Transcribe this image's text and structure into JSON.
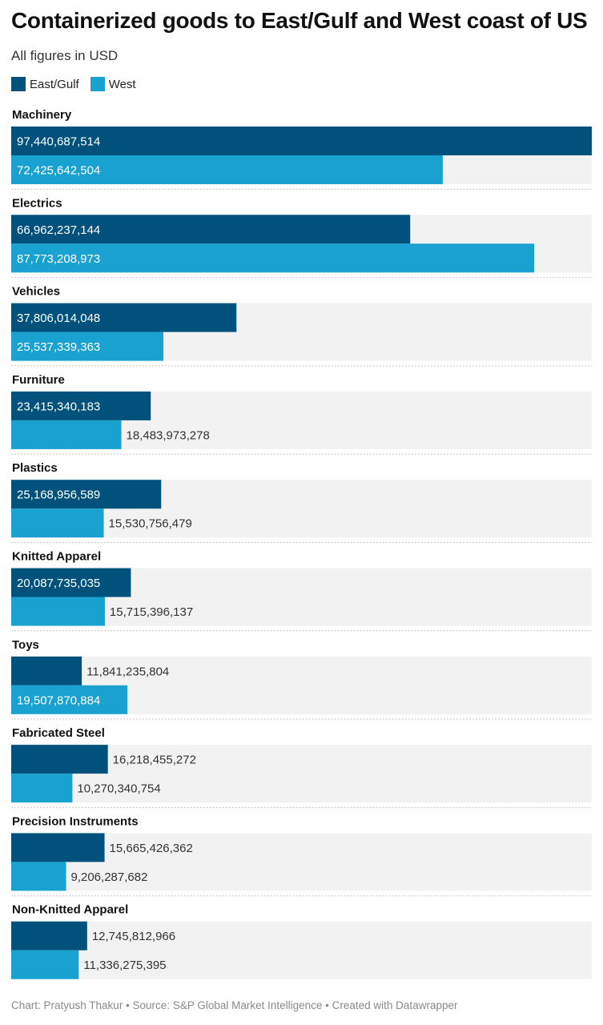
{
  "title": "Containerized goods to East/Gulf and West coast of US",
  "subtitle": "All figures in USD",
  "legend": [
    {
      "name": "East/Gulf",
      "color": "#00527c"
    },
    {
      "name": "West",
      "color": "#19a1cf"
    }
  ],
  "footer": "Chart: Pratyush Thakur • Source: S&P Global Market Intelligence • Created with Datawrapper",
  "chart_data": {
    "type": "bar",
    "orientation": "horizontal",
    "categories": [
      "Machinery",
      "Electrics",
      "Vehicles",
      "Furniture",
      "Plastics",
      "Knitted Apparel",
      "Toys",
      "Fabricated Steel",
      "Precision Instruments",
      "Non-Knitted Apparel"
    ],
    "series": [
      {
        "name": "East/Gulf",
        "color": "#00527c",
        "values": [
          97440687514,
          66962237144,
          37806014048,
          23415340183,
          25168956589,
          20087735035,
          11841235804,
          16218455272,
          15665426362,
          12745812966
        ],
        "labels": [
          "97,440,687,514",
          "66,962,237,144",
          "37,806,014,048",
          "23,415,340,183",
          "25,168,956,589",
          "20,087,735,035",
          "11,841,235,804",
          "16,218,455,272",
          "15,665,426,362",
          "12,745,812,966"
        ]
      },
      {
        "name": "West",
        "color": "#19a1cf",
        "values": [
          72425642504,
          87773208973,
          25537339363,
          18483973278,
          15530756479,
          15715396137,
          19507870884,
          10270340754,
          9206287682,
          11336275395
        ],
        "labels": [
          "72,425,642,504",
          "87,773,208,973",
          "25,537,339,363",
          "18,483,973,278",
          "15,530,756,479",
          "15,715,396,137",
          "19,507,870,884",
          "10,270,340,754",
          "9,206,287,682",
          "11,336,275,395"
        ]
      }
    ],
    "xlim": [
      0,
      97440687514
    ],
    "background_color": "#f2f2f2"
  }
}
